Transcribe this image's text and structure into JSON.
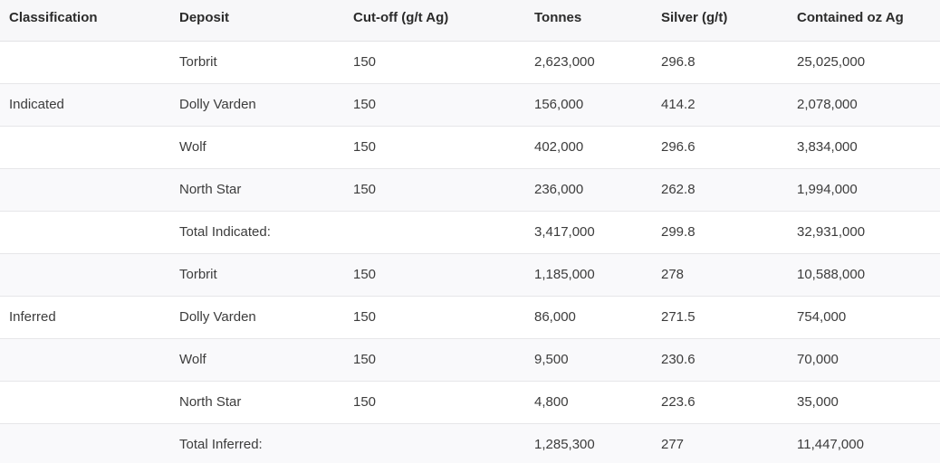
{
  "table": {
    "headers": [
      "Classification",
      "Deposit",
      "Cut-off (g/t Ag)",
      "Tonnes",
      "Silver (g/t)",
      "Contained oz Ag"
    ],
    "rows": [
      [
        "",
        "Torbrit",
        "150",
        "2,623,000",
        "296.8",
        "25,025,000"
      ],
      [
        "Indicated",
        "Dolly Varden",
        "150",
        "156,000",
        "414.2",
        "2,078,000"
      ],
      [
        "",
        "Wolf",
        "150",
        "402,000",
        "296.6",
        "3,834,000"
      ],
      [
        "",
        "North Star",
        "150",
        "236,000",
        "262.8",
        "1,994,000"
      ],
      [
        "",
        "Total Indicated:",
        "",
        "3,417,000",
        "299.8",
        "32,931,000"
      ],
      [
        "",
        "Torbrit",
        "150",
        "1,185,000",
        "278",
        "10,588,000"
      ],
      [
        "Inferred",
        "Dolly Varden",
        "150",
        "86,000",
        "271.5",
        "754,000"
      ],
      [
        "",
        "Wolf",
        "150",
        "9,500",
        "230.6",
        "70,000"
      ],
      [
        "",
        "North Star",
        "150",
        "4,800",
        "223.6",
        "35,000"
      ],
      [
        "",
        "Total Inferred:",
        "",
        "1,285,300",
        "277",
        "11,447,000"
      ]
    ]
  }
}
